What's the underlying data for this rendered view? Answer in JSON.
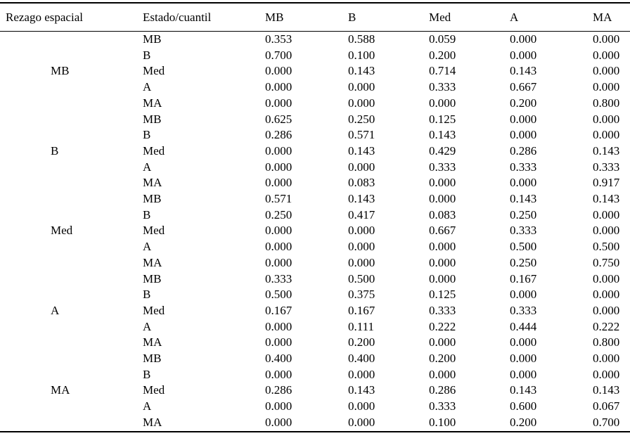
{
  "table": {
    "headers": [
      "Rezago espacial",
      "Estado/cuantil",
      "MB",
      "B",
      "Med",
      "A",
      "MA"
    ],
    "groups": [
      {
        "label": "MB",
        "rows": [
          {
            "state": "MB",
            "values": [
              "0.353",
              "0.588",
              "0.059",
              "0.000",
              "0.000"
            ]
          },
          {
            "state": "B",
            "values": [
              "0.700",
              "0.100",
              "0.200",
              "0.000",
              "0.000"
            ]
          },
          {
            "state": "Med",
            "values": [
              "0.000",
              "0.143",
              "0.714",
              "0.143",
              "0.000"
            ]
          },
          {
            "state": "A",
            "values": [
              "0.000",
              "0.000",
              "0.333",
              "0.667",
              "0.000"
            ]
          },
          {
            "state": "MA",
            "values": [
              "0.000",
              "0.000",
              "0.000",
              "0.200",
              "0.800"
            ]
          }
        ]
      },
      {
        "label": "B",
        "rows": [
          {
            "state": "MB",
            "values": [
              "0.625",
              "0.250",
              "0.125",
              "0.000",
              "0.000"
            ]
          },
          {
            "state": "B",
            "values": [
              "0.286",
              "0.571",
              "0.143",
              "0.000",
              "0.000"
            ]
          },
          {
            "state": "Med",
            "values": [
              "0.000",
              "0.143",
              "0.429",
              "0.286",
              "0.143"
            ]
          },
          {
            "state": "A",
            "values": [
              "0.000",
              "0.000",
              "0.333",
              "0.333",
              "0.333"
            ]
          },
          {
            "state": "MA",
            "values": [
              "0.000",
              "0.083",
              "0.000",
              "0.000",
              "0.917"
            ]
          }
        ]
      },
      {
        "label": "Med",
        "rows": [
          {
            "state": "MB",
            "values": [
              "0.571",
              "0.143",
              "0.000",
              "0.143",
              "0.143"
            ]
          },
          {
            "state": "B",
            "values": [
              "0.250",
              "0.417",
              "0.083",
              "0.250",
              "0.000"
            ]
          },
          {
            "state": "Med",
            "values": [
              "0.000",
              "0.000",
              "0.667",
              "0.333",
              "0.000"
            ]
          },
          {
            "state": "A",
            "values": [
              "0.000",
              "0.000",
              "0.000",
              "0.500",
              "0.500"
            ]
          },
          {
            "state": "MA",
            "values": [
              "0.000",
              "0.000",
              "0.000",
              "0.250",
              "0.750"
            ]
          }
        ]
      },
      {
        "label": "A",
        "rows": [
          {
            "state": "MB",
            "values": [
              "0.333",
              "0.500",
              "0.000",
              "0.167",
              "0.000"
            ]
          },
          {
            "state": "B",
            "values": [
              "0.500",
              "0.375",
              "0.125",
              "0.000",
              "0.000"
            ]
          },
          {
            "state": "Med",
            "values": [
              "0.167",
              "0.167",
              "0.333",
              "0.333",
              "0.000"
            ]
          },
          {
            "state": "A",
            "values": [
              "0.000",
              "0.111",
              "0.222",
              "0.444",
              "0.222"
            ]
          },
          {
            "state": "MA",
            "values": [
              "0.000",
              "0.200",
              "0.000",
              "0.000",
              "0.800"
            ]
          }
        ]
      },
      {
        "label": "MA",
        "rows": [
          {
            "state": "MB",
            "values": [
              "0.400",
              "0.400",
              "0.200",
              "0.000",
              "0.000"
            ]
          },
          {
            "state": "B",
            "values": [
              "0.000",
              "0.000",
              "0.000",
              "0.000",
              "0.000"
            ]
          },
          {
            "state": "Med",
            "values": [
              "0.286",
              "0.143",
              "0.286",
              "0.143",
              "0.143"
            ]
          },
          {
            "state": "A",
            "values": [
              "0.000",
              "0.000",
              "0.333",
              "0.600",
              "0.067"
            ]
          },
          {
            "state": "MA",
            "values": [
              "0.000",
              "0.000",
              "0.100",
              "0.200",
              "0.700"
            ]
          }
        ]
      }
    ]
  }
}
